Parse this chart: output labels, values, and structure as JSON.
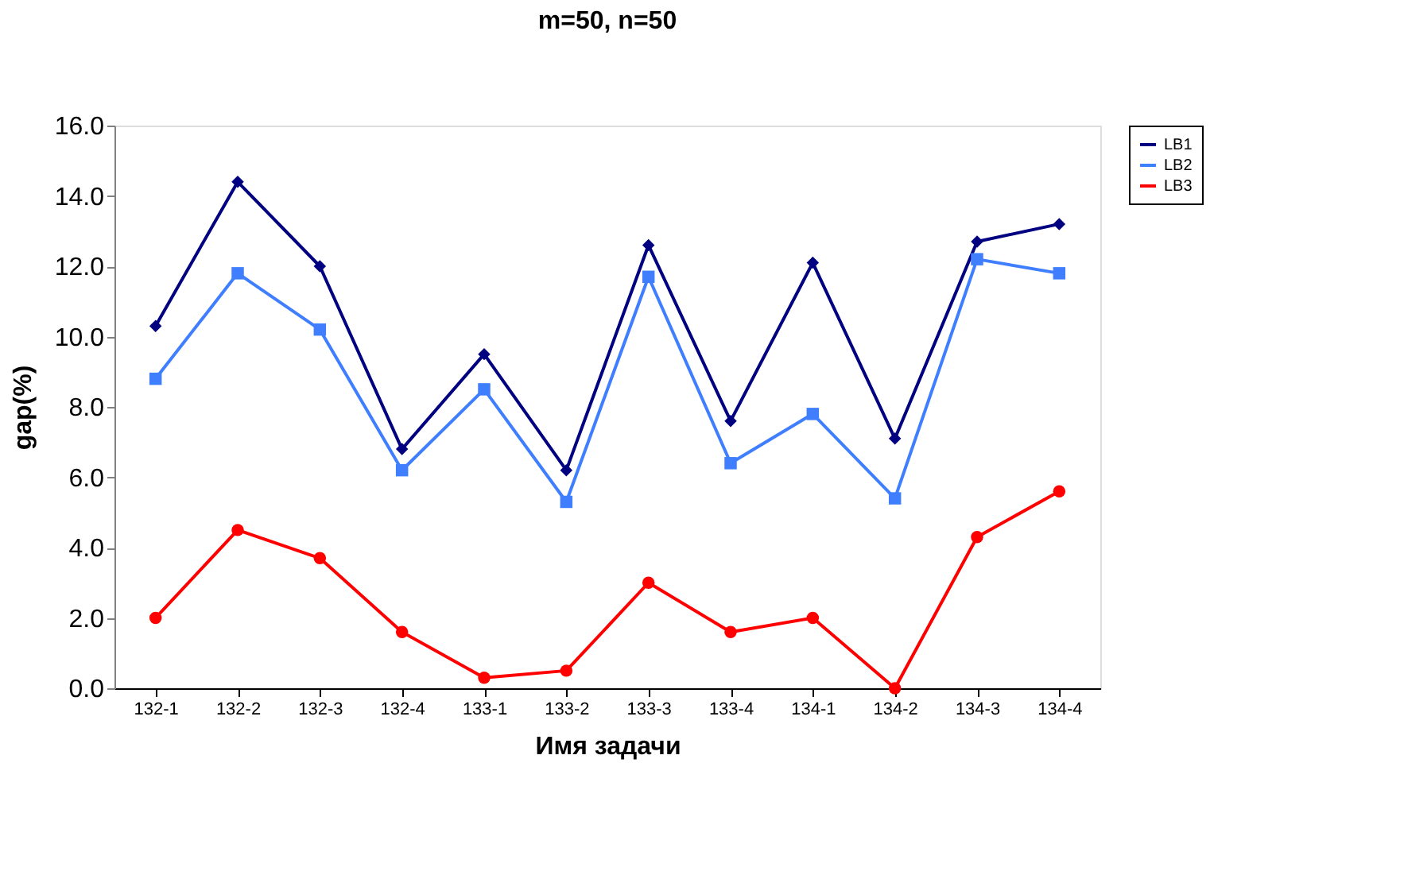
{
  "chart_data": {
    "type": "line",
    "title": "m=50, n=50",
    "xlabel": "Имя задачи",
    "ylabel": "gap(%)",
    "categories": [
      "132-1",
      "132-2",
      "132-3",
      "132-4",
      "133-1",
      "133-2",
      "133-3",
      "133-4",
      "134-1",
      "134-2",
      "134-3",
      "134-4"
    ],
    "series": [
      {
        "name": "LB1",
        "color": "#000080",
        "marker": "diamond",
        "values": [
          10.3,
          14.4,
          12.0,
          6.8,
          9.5,
          6.2,
          12.6,
          7.6,
          12.1,
          7.1,
          12.7,
          13.2
        ]
      },
      {
        "name": "LB2",
        "color": "#3f7fff",
        "marker": "square",
        "values": [
          8.8,
          11.8,
          10.2,
          6.2,
          8.5,
          5.3,
          11.7,
          6.4,
          7.8,
          5.4,
          12.2,
          11.8
        ]
      },
      {
        "name": "LB3",
        "color": "#ff0000",
        "marker": "circle",
        "values": [
          2.0,
          4.5,
          3.7,
          1.6,
          0.3,
          0.5,
          3.0,
          1.6,
          2.0,
          0.0,
          4.3,
          5.6
        ]
      }
    ],
    "ylim": [
      0,
      16
    ],
    "yticks": [
      {
        "value": 0,
        "label": "0.0"
      },
      {
        "value": 2,
        "label": "2.0"
      },
      {
        "value": 4,
        "label": "4.0"
      },
      {
        "value": 6,
        "label": "6.0"
      },
      {
        "value": 8,
        "label": "8.0"
      },
      {
        "value": 10,
        "label": "10.0"
      },
      {
        "value": 12,
        "label": "12.0"
      },
      {
        "value": 14,
        "label": "14.0"
      },
      {
        "value": 16,
        "label": "16.0"
      }
    ],
    "grid": false,
    "legend": "right",
    "line_style": "solid"
  }
}
